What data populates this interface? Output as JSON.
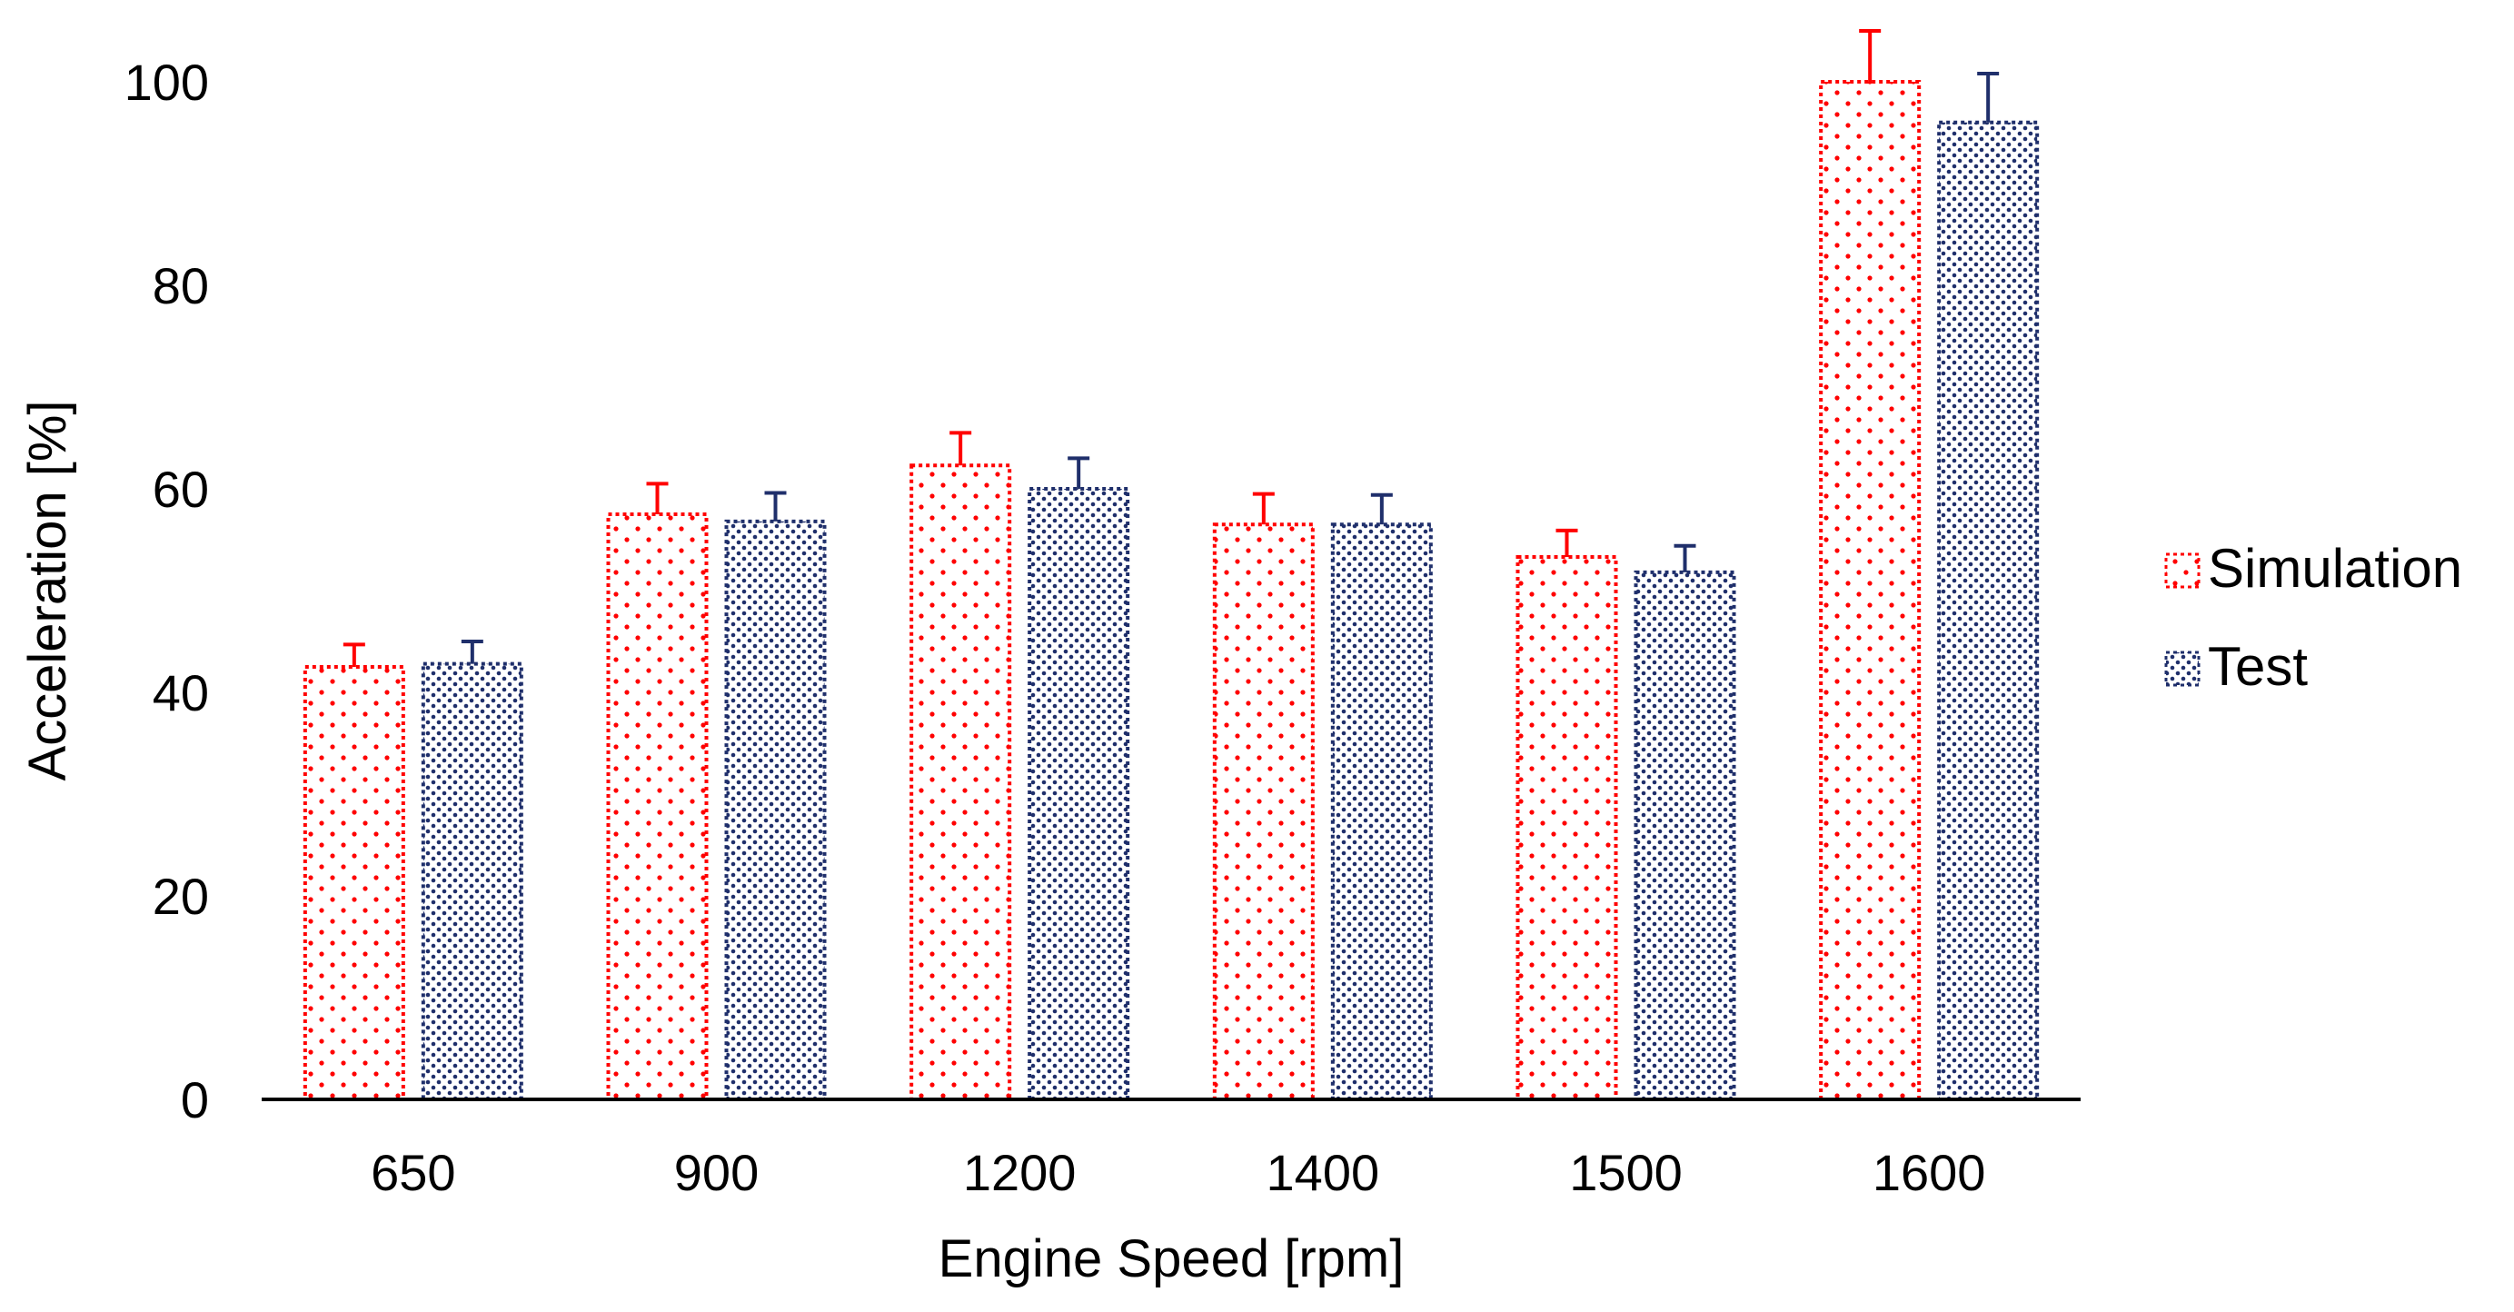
{
  "chart_data": {
    "type": "bar",
    "title": "",
    "xlabel": "Engine Speed [rpm]",
    "ylabel": "Acceleration [%]",
    "ylim": [
      0,
      100
    ],
    "yticks": [
      0,
      20,
      40,
      60,
      80,
      100
    ],
    "categories": [
      "650",
      "900",
      "1200",
      "1400",
      "1500",
      "1600"
    ],
    "series": [
      {
        "name": "Simulation",
        "color": "#ff0000",
        "pattern": "sparse-dots",
        "values": [
          42.5,
          57.5,
          62.3,
          56.5,
          53.3,
          100
        ],
        "error_plus": [
          2.2,
          3.0,
          3.2,
          3.0,
          2.6,
          5.0
        ]
      },
      {
        "name": "Test",
        "color": "#1f2f6b",
        "pattern": "dense-dots",
        "values": [
          42.8,
          56.8,
          60.0,
          56.5,
          51.8,
          96.0
        ],
        "error_plus": [
          2.2,
          2.8,
          3.0,
          2.9,
          2.6,
          4.8
        ]
      }
    ],
    "legend": {
      "position": "right"
    },
    "grid": false
  }
}
